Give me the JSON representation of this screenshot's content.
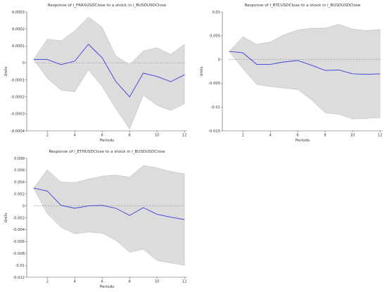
{
  "chart_data": [
    {
      "type": "line",
      "title": "Response of l_FRAXUSDClose to a shock in l_BUSDUSDClose",
      "xlabel": "Periods",
      "ylabel": "Units",
      "x": [
        1,
        2,
        3,
        4,
        5,
        6,
        7,
        8,
        9,
        10,
        11,
        12
      ],
      "xticks": [
        "2",
        "4",
        "6",
        "8",
        "10",
        "12"
      ],
      "ylim": [
        -0.0004,
        0.0003
      ],
      "yticks": [
        "-0.0004",
        "-0.0003",
        "-0.0002",
        "-0.0001",
        "0",
        "0.0001",
        "0.0002",
        "0.0003"
      ],
      "ytick_values": [
        -0.0004,
        -0.0003,
        -0.0002,
        -0.0001,
        0,
        0.0001,
        0.0002,
        0.0003
      ],
      "series": [
        {
          "values": [
            2e-05,
            2e-05,
            -1e-05,
            1e-05,
            0.00011,
            3e-05,
            -0.00011,
            -0.0002,
            -6e-05,
            -8e-05,
            -0.00011,
            -7e-05
          ]
        }
      ],
      "band_upper": [
        2e-05,
        0.00014,
        0.00013,
        0.00019,
        0.00027,
        0.00021,
        4e-05,
        -1e-05,
        7e-05,
        9e-05,
        5e-05,
        0.00011
      ],
      "band_lower": [
        2e-05,
        -9e-05,
        -0.00016,
        -0.00017,
        -4e-05,
        -0.00014,
        -0.00027,
        -0.00039,
        -0.00019,
        -0.00025,
        -0.00028,
        -0.00024
      ],
      "colors": {
        "line": "#3b3bdb",
        "band": "#dcdcdc",
        "zero": "#999999"
      },
      "grid": false
    },
    {
      "type": "line",
      "title": "Response of l_BTCUSDClose to a shock in l_BUSDUSDClose",
      "xlabel": "Periods",
      "ylabel": "Units",
      "x": [
        1,
        2,
        3,
        4,
        5,
        6,
        7,
        8,
        9,
        10,
        11,
        12
      ],
      "xticks": [
        "2",
        "4",
        "6",
        "8",
        "10",
        "12"
      ],
      "ylim": [
        -0.015,
        0.01
      ],
      "yticks": [
        "-0.015",
        "-0.01",
        "-0.005",
        "0",
        "0.005",
        "0.01"
      ],
      "ytick_values": [
        -0.015,
        -0.01,
        -0.005,
        0,
        0.005,
        0.01
      ],
      "series": [
        {
          "values": [
            0.0017,
            0.0014,
            -0.001,
            -0.001,
            -0.0005,
            -0.0002,
            -0.0012,
            -0.0023,
            -0.0022,
            -0.003,
            -0.0031,
            -0.003
          ]
        }
      ],
      "band_upper": [
        0.0017,
        0.0048,
        0.0032,
        0.0037,
        0.0052,
        0.0062,
        0.0066,
        0.0066,
        0.0074,
        0.0064,
        0.0061,
        0.0063
      ],
      "band_lower": [
        0.0017,
        -0.0019,
        -0.0052,
        -0.0057,
        -0.006,
        -0.0063,
        -0.0085,
        -0.0112,
        -0.0115,
        -0.0125,
        -0.0124,
        -0.0122
      ],
      "colors": {
        "line": "#3b3bdb",
        "band": "#dcdcdc",
        "zero": "#999999"
      },
      "grid": false
    },
    {
      "type": "line",
      "title": "Response of l_ETHUSDClose to a shock in l_BUSDUSDClose",
      "xlabel": "Periods",
      "ylabel": "Units",
      "x": [
        1,
        2,
        3,
        4,
        5,
        6,
        7,
        8,
        9,
        10,
        11,
        12
      ],
      "xticks": [
        "2",
        "4",
        "6",
        "8",
        "10",
        "12"
      ],
      "ylim": [
        -0.012,
        0.008
      ],
      "yticks": [
        "-0.012",
        "-0.01",
        "-0.008",
        "-0.006",
        "-0.004",
        "-0.002",
        "0",
        "0.002",
        "0.004",
        "0.006",
        "0.008"
      ],
      "ytick_values": [
        -0.012,
        -0.01,
        -0.008,
        -0.006,
        -0.004,
        -0.002,
        0,
        0.002,
        0.004,
        0.006,
        0.008
      ],
      "series": [
        {
          "values": [
            0.003,
            0.0025,
            0.0001,
            -0.0004,
            0.0,
            0.0001,
            -0.0004,
            -0.0016,
            -0.0003,
            -0.0014,
            -0.0019,
            -0.0023
          ]
        }
      ],
      "band_upper": [
        0.003,
        0.0061,
        0.004,
        0.0039,
        0.0045,
        0.005,
        0.0052,
        0.0048,
        0.0068,
        0.0064,
        0.0058,
        0.0054
      ],
      "band_lower": [
        0.003,
        -0.0013,
        -0.0036,
        -0.0047,
        -0.0044,
        -0.0046,
        -0.0058,
        -0.0078,
        -0.0073,
        -0.0092,
        -0.0096,
        -0.01
      ],
      "colors": {
        "line": "#3b3bdb",
        "band": "#dcdcdc",
        "zero": "#999999"
      },
      "grid": false
    }
  ]
}
